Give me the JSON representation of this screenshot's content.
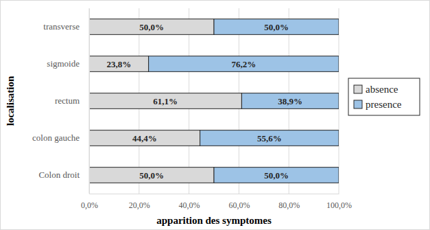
{
  "chart_data": {
    "type": "bar",
    "orientation": "horizontal",
    "stacked": true,
    "data_labels": true,
    "grid": true,
    "legend": "right",
    "x_label": "apparition des symptomes",
    "y_label": "localisation",
    "categories": [
      "Colon droit",
      "colon gauche",
      "rectum",
      "sigmoide",
      "transverse"
    ],
    "series": [
      {
        "name": "absence",
        "color": "#d9d9d9",
        "values": [
          50.0,
          44.4,
          61.1,
          23.8,
          50.0
        ],
        "value_labels": [
          "50,0%",
          "44,4%",
          "61,1%",
          "23,8%",
          "50,0%"
        ]
      },
      {
        "name": "presence",
        "color": "#9dc3e6",
        "values": [
          50.0,
          55.6,
          38.9,
          76.2,
          50.0
        ],
        "value_labels": [
          "50,0%",
          "55,6%",
          "38,9%",
          "76,2%",
          "50,0%"
        ]
      }
    ],
    "xlim": [
      0,
      100
    ],
    "xticks": [
      {
        "value": 0,
        "label": "0,0%"
      },
      {
        "value": 20,
        "label": "20,0%"
      },
      {
        "value": 40,
        "label": "40,0%"
      },
      {
        "value": 60,
        "label": "60,0%"
      },
      {
        "value": 80,
        "label": "80,0%"
      },
      {
        "value": 100,
        "label": "100,0%"
      }
    ]
  }
}
